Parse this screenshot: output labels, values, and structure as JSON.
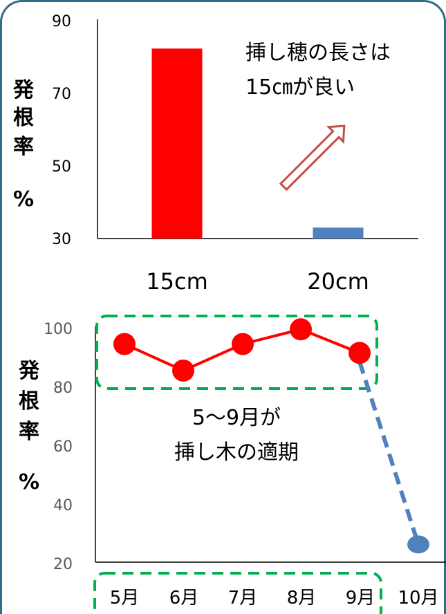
{
  "chart_data": [
    {
      "type": "bar",
      "categories": [
        "15cm",
        "20cm"
      ],
      "values": [
        82,
        33
      ],
      "colors": [
        "#ff0000",
        "#4f81bd"
      ],
      "ylim": [
        30,
        90
      ],
      "yticks": [
        90,
        70,
        50,
        30
      ],
      "ylabel_chars": [
        "発",
        "根",
        "率",
        "%"
      ],
      "annotation_lines": [
        "挿し穂の長さは",
        "15㎝が良い"
      ],
      "arrow": "hollow-red-up-left"
    },
    {
      "type": "line",
      "categories": [
        "5月",
        "6月",
        "7月",
        "8月",
        "9月",
        "10月"
      ],
      "series": [
        {
          "color": "#ff0000",
          "style": "solid",
          "values": [
            94,
            85,
            94,
            99,
            91,
            null
          ]
        },
        {
          "color": "#4f81bd",
          "style": "dashed",
          "values": [
            null,
            null,
            null,
            null,
            88,
            26
          ]
        }
      ],
      "ylim": [
        20,
        100
      ],
      "yticks": [
        100,
        80,
        60,
        40,
        20
      ],
      "ylabel_chars": [
        "発",
        "根",
        "率",
        "%"
      ],
      "annotation_lines": [
        "5～9月が",
        "挿し木の適期"
      ],
      "highlight": "green-dashed-box"
    }
  ]
}
